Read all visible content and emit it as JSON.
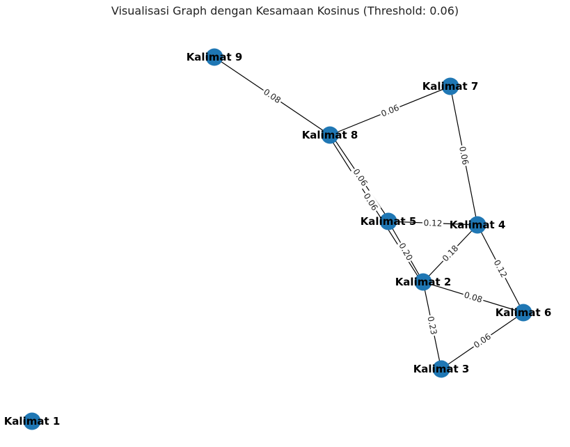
{
  "title": "Visualisasi Graph dengan Kesamaan Kosinus (Threshold: 0.06)",
  "colors": {
    "node": "#1f77b4",
    "edge": "#000000",
    "label": "#000000"
  },
  "graph": {
    "nodes": [
      {
        "id": "k1",
        "label": "Kalimat 1"
      },
      {
        "id": "k2",
        "label": "Kalimat 2"
      },
      {
        "id": "k3",
        "label": "Kalimat 3"
      },
      {
        "id": "k4",
        "label": "Kalimat 4"
      },
      {
        "id": "k5",
        "label": "Kalimat 5"
      },
      {
        "id": "k6",
        "label": "Kalimat 6"
      },
      {
        "id": "k7",
        "label": "Kalimat 7"
      },
      {
        "id": "k8",
        "label": "Kalimat 8"
      },
      {
        "id": "k9",
        "label": "Kalimat 9"
      }
    ],
    "edges": [
      {
        "source": "k9",
        "target": "k8",
        "weight": "0.08"
      },
      {
        "source": "k8",
        "target": "k7",
        "weight": "0.06"
      },
      {
        "source": "k7",
        "target": "k4",
        "weight": "0.06"
      },
      {
        "source": "k8",
        "target": "k5",
        "weight": "0.06"
      },
      {
        "source": "k8",
        "target": "k2",
        "weight": "0.06"
      },
      {
        "source": "k5",
        "target": "k4",
        "weight": "0.12"
      },
      {
        "source": "k5",
        "target": "k2",
        "weight": "0.20"
      },
      {
        "source": "k2",
        "target": "k4",
        "weight": "0.18"
      },
      {
        "source": "k4",
        "target": "k6",
        "weight": "0.12"
      },
      {
        "source": "k2",
        "target": "k6",
        "weight": "0.08"
      },
      {
        "source": "k2",
        "target": "k3",
        "weight": "0.23"
      },
      {
        "source": "k3",
        "target": "k6",
        "weight": "0.06"
      }
    ]
  }
}
